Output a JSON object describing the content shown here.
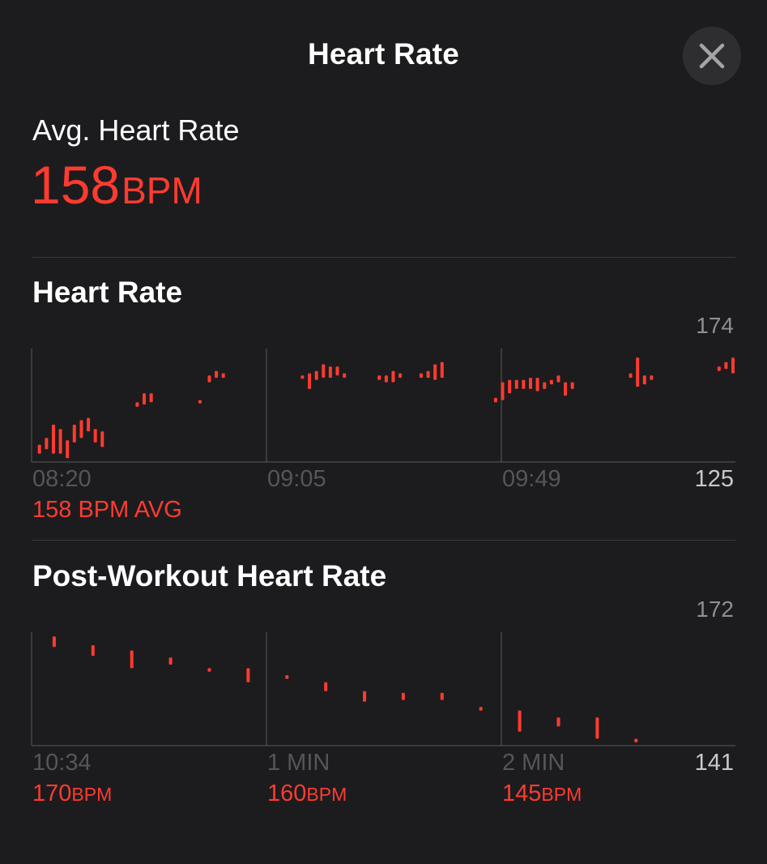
{
  "header": {
    "title": "Heart Rate",
    "close_icon": "close-icon"
  },
  "summary": {
    "label": "Avg. Heart Rate",
    "value": "158",
    "unit": "BPM"
  },
  "colors": {
    "accent": "#ff3b30",
    "background": "#1c1c1e",
    "muted_text": "#8e8e93",
    "grid": "#5a5a5e"
  },
  "heart_rate": {
    "title": "Heart Rate",
    "avg_label": "158 BPM AVG",
    "chart_data": {
      "type": "range-bar",
      "title": "Heart Rate",
      "x_ticks": [
        "08:20",
        "09:05",
        "09:49"
      ],
      "y_max_label": "174",
      "y_min_label": "125",
      "ylim": [
        125,
        174
      ],
      "xlim": [
        0,
        150
      ],
      "grid": "vertical",
      "series": [
        {
          "points": [
            {
              "x": 1,
              "lo": 128,
              "hi": 132
            },
            {
              "x": 2.5,
              "lo": 130,
              "hi": 135
            },
            {
              "x": 4,
              "lo": 128,
              "hi": 141
            },
            {
              "x": 5.5,
              "lo": 128,
              "hi": 139
            },
            {
              "x": 7,
              "lo": 126,
              "hi": 134
            },
            {
              "x": 8.5,
              "lo": 133,
              "hi": 141
            },
            {
              "x": 10,
              "lo": 135,
              "hi": 143
            },
            {
              "x": 11.5,
              "lo": 138,
              "hi": 144
            },
            {
              "x": 13,
              "lo": 133,
              "hi": 139
            },
            {
              "x": 14.5,
              "lo": 131,
              "hi": 138
            },
            {
              "x": 22,
              "lo": 149,
              "hi": 151
            },
            {
              "x": 23.5,
              "lo": 150,
              "hi": 155
            },
            {
              "x": 25,
              "lo": 151,
              "hi": 155
            },
            {
              "x": 35.5,
              "lo": 150.5,
              "hi": 152
            },
            {
              "x": 37.5,
              "lo": 160,
              "hi": 163
            },
            {
              "x": 39,
              "lo": 162,
              "hi": 165
            },
            {
              "x": 40.5,
              "lo": 162,
              "hi": 164
            },
            {
              "x": 57.5,
              "lo": 161.5,
              "hi": 163
            },
            {
              "x": 59,
              "lo": 157,
              "hi": 164
            },
            {
              "x": 60.5,
              "lo": 161,
              "hi": 165
            },
            {
              "x": 62,
              "lo": 162,
              "hi": 168
            },
            {
              "x": 63.5,
              "lo": 162,
              "hi": 167
            },
            {
              "x": 65,
              "lo": 163,
              "hi": 167
            },
            {
              "x": 66.5,
              "lo": 162,
              "hi": 164
            },
            {
              "x": 74,
              "lo": 161,
              "hi": 163
            },
            {
              "x": 75.5,
              "lo": 160,
              "hi": 163
            },
            {
              "x": 77,
              "lo": 160,
              "hi": 165
            },
            {
              "x": 78.5,
              "lo": 162,
              "hi": 164
            },
            {
              "x": 83,
              "lo": 162,
              "hi": 164
            },
            {
              "x": 84.5,
              "lo": 162,
              "hi": 165
            },
            {
              "x": 86,
              "lo": 161,
              "hi": 168
            },
            {
              "x": 87.5,
              "lo": 162,
              "hi": 169
            },
            {
              "x": 99,
              "lo": 151,
              "hi": 153
            },
            {
              "x": 100.5,
              "lo": 152,
              "hi": 160
            },
            {
              "x": 102,
              "lo": 155,
              "hi": 161
            },
            {
              "x": 103.5,
              "lo": 157,
              "hi": 161
            },
            {
              "x": 105,
              "lo": 157,
              "hi": 161
            },
            {
              "x": 106.5,
              "lo": 157,
              "hi": 162
            },
            {
              "x": 108,
              "lo": 156,
              "hi": 162
            },
            {
              "x": 109.5,
              "lo": 157,
              "hi": 160
            },
            {
              "x": 111,
              "lo": 159,
              "hi": 161
            },
            {
              "x": 112.5,
              "lo": 160,
              "hi": 163
            },
            {
              "x": 114,
              "lo": 154,
              "hi": 160
            },
            {
              "x": 115.5,
              "lo": 157,
              "hi": 160
            },
            {
              "x": 128,
              "lo": 162,
              "hi": 164
            },
            {
              "x": 129.5,
              "lo": 158,
              "hi": 171
            },
            {
              "x": 131,
              "lo": 159,
              "hi": 163
            },
            {
              "x": 132.5,
              "lo": 161,
              "hi": 163
            },
            {
              "x": 147,
              "lo": 165,
              "hi": 167
            },
            {
              "x": 148.5,
              "lo": 166,
              "hi": 169
            },
            {
              "x": 150,
              "lo": 164,
              "hi": 171
            }
          ]
        }
      ]
    }
  },
  "post_workout": {
    "title": "Post-Workout Heart Rate",
    "chart_data": {
      "type": "range-bar",
      "title": "Post-Workout Heart Rate",
      "x_ticks": [
        "10:34",
        "1 MIN",
        "2 MIN"
      ],
      "y_max_label": "172",
      "y_min_label": "141",
      "ylim": [
        141,
        172
      ],
      "xlim": [
        0,
        180
      ],
      "grid": "vertical",
      "tick_values": [
        {
          "value": "170",
          "unit": "BPM"
        },
        {
          "value": "160",
          "unit": "BPM"
        },
        {
          "value": "145",
          "unit": "BPM"
        }
      ],
      "series": [
        {
          "points": [
            {
              "x": 5,
              "lo": 168.5,
              "hi": 171.5
            },
            {
              "x": 15,
              "lo": 166,
              "hi": 169
            },
            {
              "x": 25,
              "lo": 162.5,
              "hi": 167.5
            },
            {
              "x": 35,
              "lo": 163.5,
              "hi": 165.5
            },
            {
              "x": 45,
              "lo": 161.5,
              "hi": 162.5
            },
            {
              "x": 55,
              "lo": 158.5,
              "hi": 162.5
            },
            {
              "x": 65,
              "lo": 159.5,
              "hi": 160.5
            },
            {
              "x": 75,
              "lo": 156,
              "hi": 158.5
            },
            {
              "x": 85,
              "lo": 153,
              "hi": 156
            },
            {
              "x": 95,
              "lo": 153.5,
              "hi": 155.5
            },
            {
              "x": 105,
              "lo": 153.5,
              "hi": 155.5
            },
            {
              "x": 115,
              "lo": 150.5,
              "hi": 151.5
            },
            {
              "x": 125,
              "lo": 144.5,
              "hi": 150.5
            },
            {
              "x": 135,
              "lo": 146,
              "hi": 148.5
            },
            {
              "x": 145,
              "lo": 142.5,
              "hi": 148.5
            },
            {
              "x": 155,
              "lo": 141.5,
              "hi": 142.5
            }
          ]
        }
      ]
    }
  }
}
